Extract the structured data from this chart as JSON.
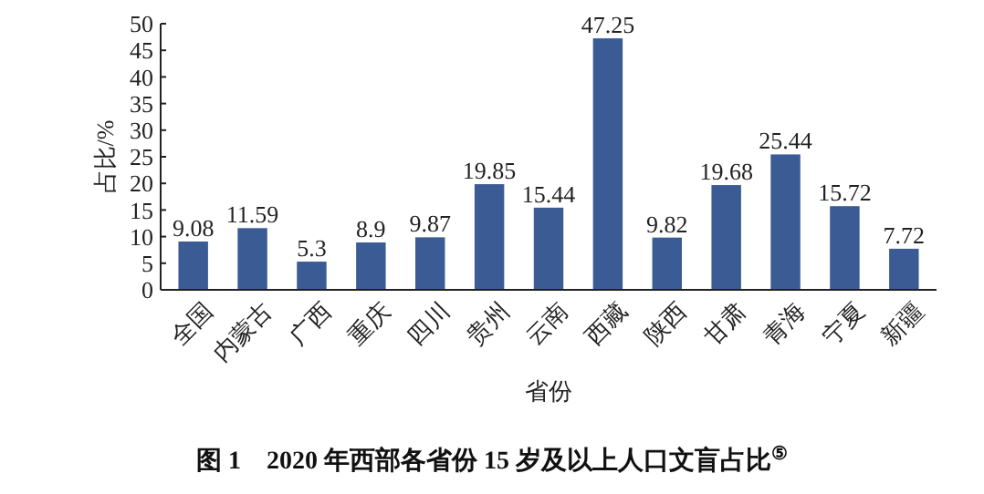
{
  "chart_data": {
    "type": "bar",
    "title": "图 1　2020 年西部各省份 15 岁及以上人口文盲占比$^{⑤}$",
    "xlabel": "省份",
    "ylabel": "占比/%",
    "categories": [
      "全国",
      "内蒙古",
      "广西",
      "重庆",
      "四川",
      "贵州",
      "云南",
      "西藏",
      "陕西",
      "甘肃",
      "青海",
      "宁夏",
      "新疆"
    ],
    "values": [
      9.08,
      11.59,
      5.3,
      8.9,
      9.87,
      19.85,
      15.44,
      47.25,
      9.82,
      19.68,
      25.44,
      15.72,
      7.72
    ],
    "color": "#3b5b94",
    "ylim": [
      0,
      50
    ],
    "yticks": [
      0,
      5,
      10,
      15,
      20,
      25,
      30,
      35,
      40,
      45,
      50
    ],
    "data_labels": true
  }
}
